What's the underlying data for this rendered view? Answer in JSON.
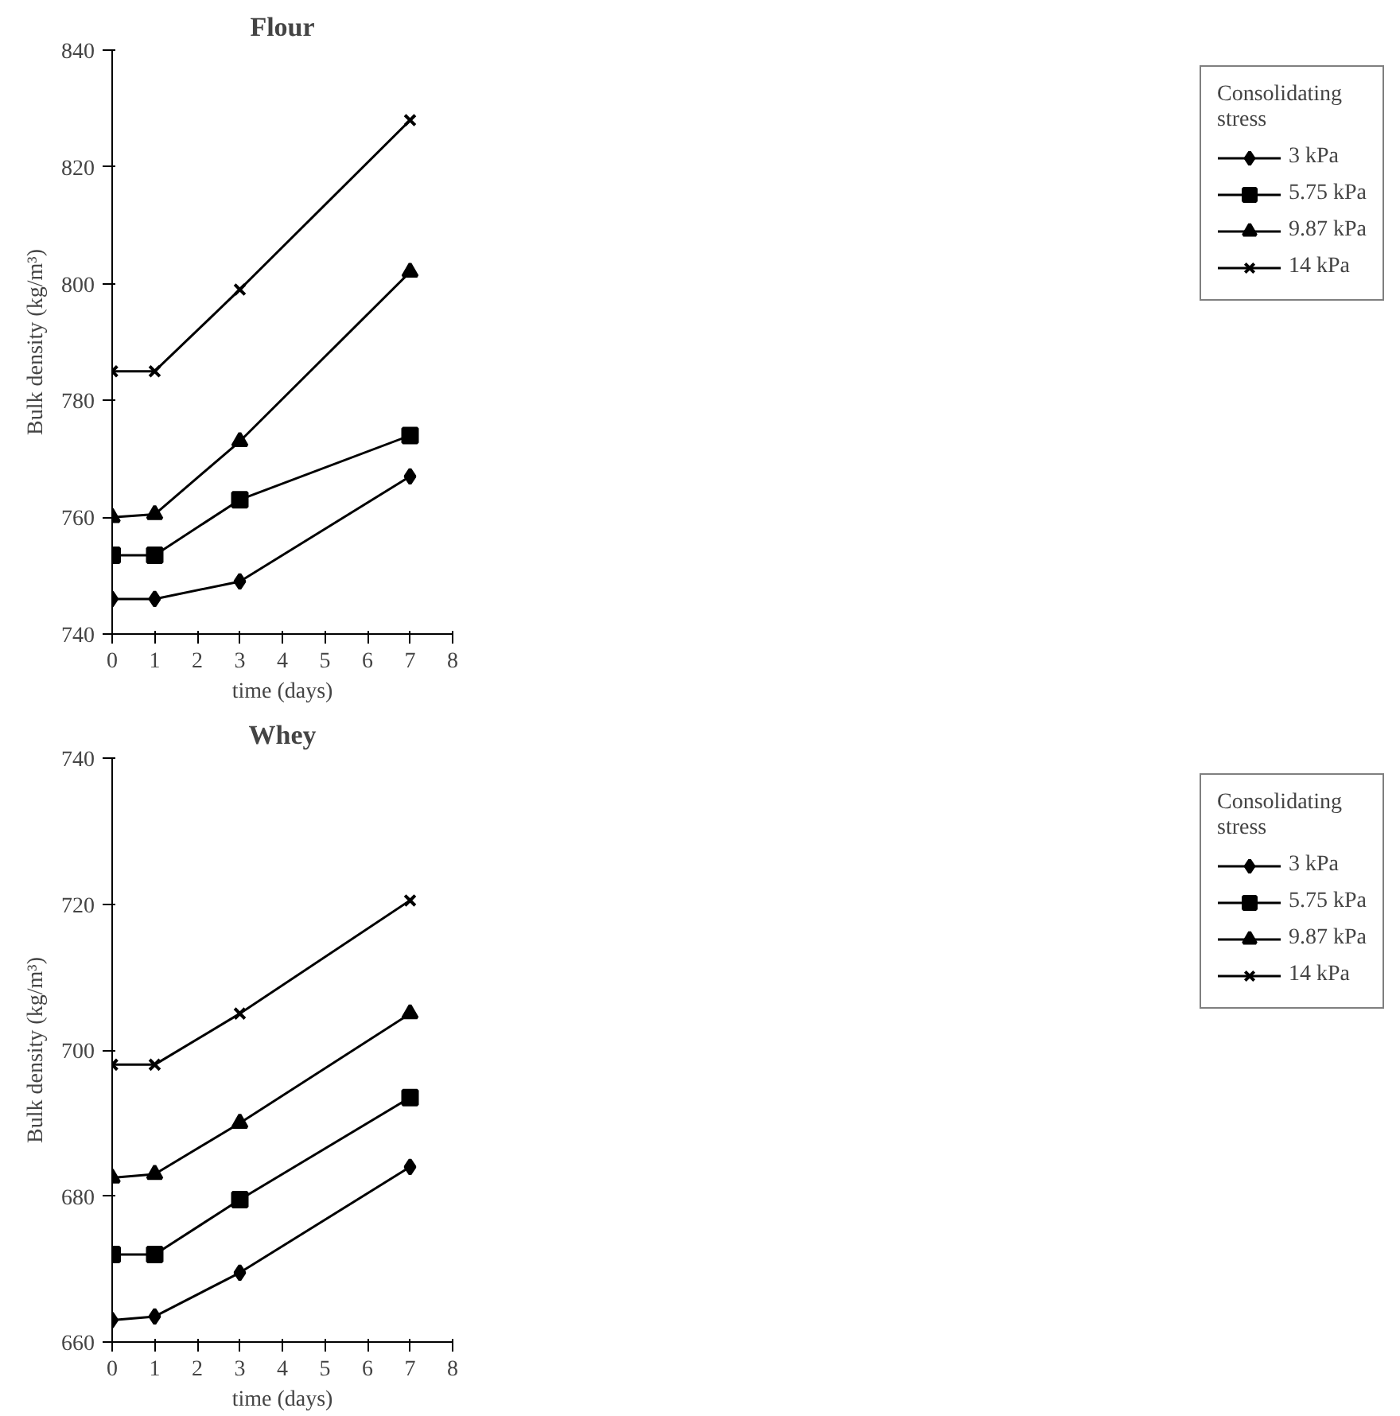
{
  "chart_data": [
    {
      "type": "line",
      "title": "Flour",
      "xlabel": "time (days)",
      "ylabel": "Bulk density (kg/m³)",
      "legend_title": "Consolidating\nstress",
      "x": [
        0,
        1,
        3,
        7
      ],
      "xlim": [
        0,
        8
      ],
      "xticks": [
        0,
        1,
        2,
        3,
        4,
        5,
        6,
        7,
        8
      ],
      "ylim": [
        740,
        840
      ],
      "yticks": [
        740,
        760,
        780,
        800,
        820,
        840
      ],
      "grid": false,
      "legend": "right",
      "line_style": "solid",
      "series": [
        {
          "name": "3 kPa",
          "color": "#000000",
          "marker": "diamond",
          "values": [
            746,
            746,
            749,
            767
          ]
        },
        {
          "name": "5.75 kPa",
          "color": "#000000",
          "marker": "square",
          "values": [
            753.5,
            753.5,
            763,
            774
          ]
        },
        {
          "name": "9.87 kPa",
          "color": "#000000",
          "marker": "triangle",
          "values": [
            760,
            760.5,
            773,
            802
          ]
        },
        {
          "name": "14 kPa",
          "color": "#000000",
          "marker": "cross",
          "values": [
            785,
            785,
            799,
            828
          ]
        }
      ]
    },
    {
      "type": "line",
      "title": "Whey",
      "xlabel": "time (days)",
      "ylabel": "Bulk density (kg/m³)",
      "legend_title": "Consolidating\nstress",
      "x": [
        0,
        1,
        3,
        7
      ],
      "xlim": [
        0,
        8
      ],
      "xticks": [
        0,
        1,
        2,
        3,
        4,
        5,
        6,
        7,
        8
      ],
      "ylim": [
        660,
        740
      ],
      "yticks": [
        660,
        680,
        700,
        720,
        740
      ],
      "grid": false,
      "legend": "right",
      "line_style": "solid",
      "series": [
        {
          "name": "3 kPa",
          "color": "#000000",
          "marker": "diamond",
          "values": [
            663,
            663.5,
            669.5,
            684
          ]
        },
        {
          "name": "5.75 kPa",
          "color": "#000000",
          "marker": "square",
          "values": [
            672,
            672,
            679.5,
            693.5
          ]
        },
        {
          "name": "9.87 kPa",
          "color": "#000000",
          "marker": "triangle",
          "values": [
            682.5,
            683,
            690,
            705
          ]
        },
        {
          "name": "14 kPa",
          "color": "#000000",
          "marker": "cross",
          "values": [
            698,
            698,
            705,
            720.5
          ]
        }
      ]
    }
  ]
}
